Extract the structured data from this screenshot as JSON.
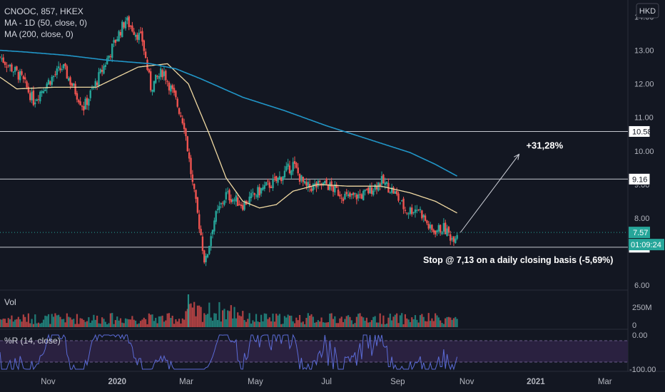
{
  "header": {
    "symbol_line": "CNOOC, 857, HKEX",
    "ma50_label": "MA - 1D (50, close, 0)",
    "ma200_label": "MA (200, close, 0)",
    "currency_button": "HKD"
  },
  "colors": {
    "background": "#131722",
    "up": "#26a69a",
    "down": "#ef5350",
    "ma50": "#f0d9a2",
    "ma200": "#2196c8",
    "hline": "#c5c8d0",
    "rsi_line": "#5b6bd6",
    "rsi_band": "#2a2140",
    "axis_text": "#b2b5be"
  },
  "price_panel": {
    "ylim": [
      6.0,
      14.5
    ],
    "y_ticks": [
      "14.00",
      "13.00",
      "12.00",
      "11.00",
      "10.00",
      "9.00",
      "8.00",
      "6.00"
    ],
    "horizontal_levels": [
      {
        "value": 10.58,
        "label": "10.58"
      },
      {
        "value": 9.16,
        "label": "9.16"
      },
      {
        "value": 7.13,
        "label": "7.13"
      }
    ],
    "current_price": {
      "value": 7.57,
      "label": "7.57"
    },
    "countdown_label": "01:09:24",
    "target_annotation": "+31,28%",
    "target_arrow": {
      "from": [
        2020.82,
        7.57
      ],
      "to": [
        2020.96,
        9.9
      ]
    },
    "stop_annotation": "Stop @ 7,13 on a daily closing basis (-5,69%)"
  },
  "volume_panel": {
    "label": "Vol",
    "tick_labels": [
      "250M",
      "0"
    ]
  },
  "williams_panel": {
    "label": "%R (14, close)",
    "tick_labels": [
      "0.00",
      "-100.00"
    ],
    "band_upper": -20,
    "band_lower": -80
  },
  "x_axis": {
    "ticks": [
      {
        "t": 2019.835,
        "label": "Nov",
        "bold": false
      },
      {
        "t": 2020.0,
        "label": "2020",
        "bold": true
      },
      {
        "t": 2020.165,
        "label": "Mar",
        "bold": false
      },
      {
        "t": 2020.33,
        "label": "May",
        "bold": false
      },
      {
        "t": 2020.5,
        "label": "Jul",
        "bold": false
      },
      {
        "t": 2020.67,
        "label": "Sep",
        "bold": false
      },
      {
        "t": 2020.835,
        "label": "Nov",
        "bold": false
      },
      {
        "t": 2021.0,
        "label": "2021",
        "bold": true
      },
      {
        "t": 2021.165,
        "label": "Mar",
        "bold": false
      }
    ]
  },
  "chart_data": {
    "type": "candlestick",
    "title": "CNOOC, 857, HKEX",
    "x_unit": "year",
    "xlim": [
      2019.72,
      2021.22
    ],
    "ylim": [
      6.0,
      14.5
    ],
    "price_anchors": [
      {
        "t": 2019.72,
        "c": 12.8
      },
      {
        "t": 2019.77,
        "c": 12.2
      },
      {
        "t": 2019.8,
        "c": 11.5
      },
      {
        "t": 2019.83,
        "c": 12.0
      },
      {
        "t": 2019.87,
        "c": 12.5
      },
      {
        "t": 2019.92,
        "c": 11.3
      },
      {
        "t": 2019.96,
        "c": 12.3
      },
      {
        "t": 2020.0,
        "c": 13.4
      },
      {
        "t": 2020.02,
        "c": 13.9
      },
      {
        "t": 2020.06,
        "c": 13.3
      },
      {
        "t": 2020.08,
        "c": 11.9
      },
      {
        "t": 2020.11,
        "c": 12.4
      },
      {
        "t": 2020.14,
        "c": 11.5
      },
      {
        "t": 2020.16,
        "c": 10.8
      },
      {
        "t": 2020.18,
        "c": 9.0
      },
      {
        "t": 2020.2,
        "c": 7.5
      },
      {
        "t": 2020.21,
        "c": 6.6
      },
      {
        "t": 2020.23,
        "c": 7.9
      },
      {
        "t": 2020.26,
        "c": 8.7
      },
      {
        "t": 2020.3,
        "c": 8.4
      },
      {
        "t": 2020.35,
        "c": 8.9
      },
      {
        "t": 2020.38,
        "c": 9.1
      },
      {
        "t": 2020.42,
        "c": 9.6
      },
      {
        "t": 2020.45,
        "c": 8.9
      },
      {
        "t": 2020.5,
        "c": 9.0
      },
      {
        "t": 2020.55,
        "c": 8.6
      },
      {
        "t": 2020.59,
        "c": 8.7
      },
      {
        "t": 2020.63,
        "c": 9.1
      },
      {
        "t": 2020.66,
        "c": 8.8
      },
      {
        "t": 2020.69,
        "c": 8.2
      },
      {
        "t": 2020.72,
        "c": 8.3
      },
      {
        "t": 2020.75,
        "c": 7.6
      },
      {
        "t": 2020.78,
        "c": 7.7
      },
      {
        "t": 2020.8,
        "c": 7.4
      },
      {
        "t": 2020.812,
        "c": 7.57
      }
    ],
    "ma50_anchors": [
      {
        "t": 2019.72,
        "v": 12.2
      },
      {
        "t": 2019.76,
        "v": 11.85
      },
      {
        "t": 2019.85,
        "v": 11.9
      },
      {
        "t": 2019.95,
        "v": 11.9
      },
      {
        "t": 2020.05,
        "v": 12.5
      },
      {
        "t": 2020.12,
        "v": 12.6
      },
      {
        "t": 2020.17,
        "v": 12.0
      },
      {
        "t": 2020.22,
        "v": 10.5
      },
      {
        "t": 2020.26,
        "v": 9.2
      },
      {
        "t": 2020.3,
        "v": 8.5
      },
      {
        "t": 2020.34,
        "v": 8.3
      },
      {
        "t": 2020.38,
        "v": 8.4
      },
      {
        "t": 2020.42,
        "v": 8.8
      },
      {
        "t": 2020.48,
        "v": 9.0
      },
      {
        "t": 2020.55,
        "v": 8.95
      },
      {
        "t": 2020.63,
        "v": 8.95
      },
      {
        "t": 2020.7,
        "v": 8.75
      },
      {
        "t": 2020.76,
        "v": 8.5
      },
      {
        "t": 2020.812,
        "v": 8.15
      }
    ],
    "ma200_anchors": [
      {
        "t": 2019.72,
        "v": 13.0
      },
      {
        "t": 2019.78,
        "v": 12.95
      },
      {
        "t": 2019.88,
        "v": 12.85
      },
      {
        "t": 2019.98,
        "v": 12.7
      },
      {
        "t": 2020.08,
        "v": 12.6
      },
      {
        "t": 2020.14,
        "v": 12.45
      },
      {
        "t": 2020.2,
        "v": 12.15
      },
      {
        "t": 2020.3,
        "v": 11.6
      },
      {
        "t": 2020.4,
        "v": 11.2
      },
      {
        "t": 2020.5,
        "v": 10.75
      },
      {
        "t": 2020.6,
        "v": 10.35
      },
      {
        "t": 2020.7,
        "v": 9.95
      },
      {
        "t": 2020.76,
        "v": 9.6
      },
      {
        "t": 2020.812,
        "v": 9.25
      }
    ]
  }
}
